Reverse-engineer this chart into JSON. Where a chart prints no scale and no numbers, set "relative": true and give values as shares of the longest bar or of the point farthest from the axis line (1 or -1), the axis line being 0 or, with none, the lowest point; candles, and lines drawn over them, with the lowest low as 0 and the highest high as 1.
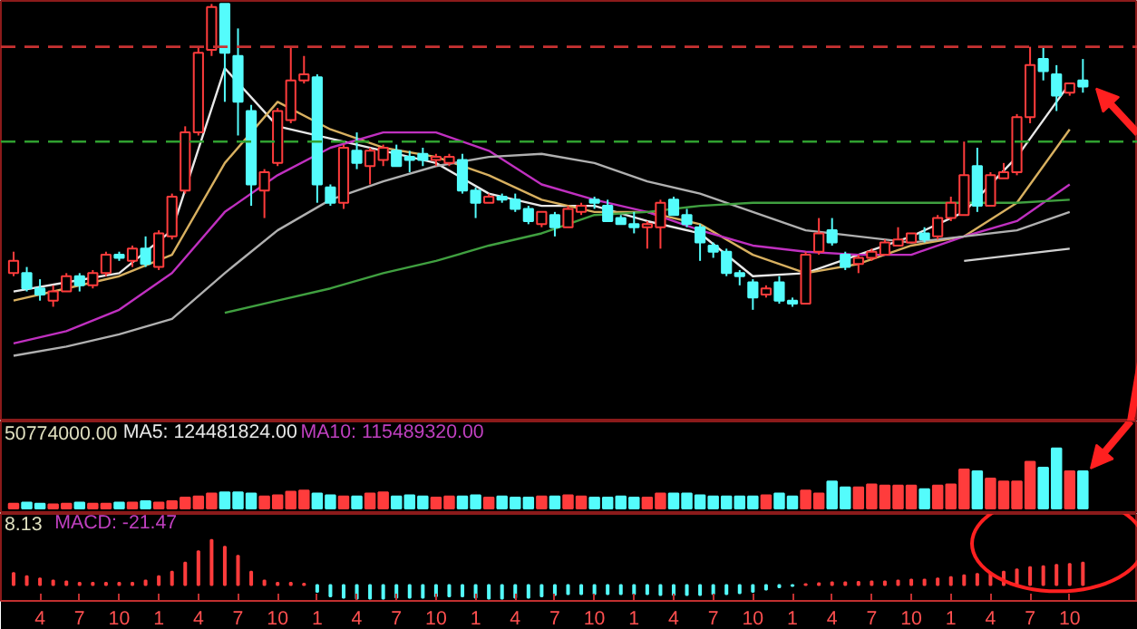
{
  "chart_data": [
    {
      "type": "candlestick",
      "relative": true,
      "tick_labels": false,
      "categories": [
        null,
        null,
        "4",
        null,
        null,
        "7",
        null,
        null,
        "10",
        null,
        null,
        "1",
        null,
        null,
        "4",
        null,
        null,
        "7",
        null,
        null,
        "10",
        null,
        null,
        "1",
        null,
        null,
        "4",
        null,
        null,
        "7",
        null,
        null,
        "10",
        null,
        null,
        "1",
        null,
        null,
        "4",
        null,
        null,
        "7",
        null,
        null,
        "10",
        null,
        null,
        "1",
        null,
        null,
        "4",
        null,
        null,
        "7",
        null,
        null,
        "10",
        null,
        null,
        "1",
        null,
        null,
        "4",
        null,
        null,
        "7",
        null,
        null,
        "10",
        null,
        null,
        "1",
        null,
        null,
        "4",
        null,
        null,
        "7",
        null,
        null,
        "10",
        null
      ],
      "ohlc": [
        [
          0.12,
          0.19,
          0.11,
          0.16
        ],
        [
          0.12,
          0.14,
          0.06,
          0.07
        ],
        [
          0.07,
          0.1,
          0.03,
          0.05
        ],
        [
          0.03,
          0.08,
          0.01,
          0.06
        ],
        [
          0.06,
          0.12,
          0.06,
          0.11
        ],
        [
          0.11,
          0.12,
          0.06,
          0.08
        ],
        [
          0.08,
          0.13,
          0.07,
          0.12
        ],
        [
          0.12,
          0.19,
          0.11,
          0.18
        ],
        [
          0.18,
          0.19,
          0.16,
          0.17
        ],
        [
          0.16,
          0.21,
          0.14,
          0.2
        ],
        [
          0.2,
          0.24,
          0.14,
          0.15
        ],
        [
          0.14,
          0.26,
          0.13,
          0.25
        ],
        [
          0.24,
          0.38,
          0.23,
          0.37
        ],
        [
          0.39,
          0.6,
          0.38,
          0.58
        ],
        [
          0.58,
          0.86,
          0.57,
          0.84
        ],
        [
          0.85,
          1.0,
          0.83,
          0.99
        ],
        [
          1.0,
          1.0,
          0.68,
          0.84
        ],
        [
          0.83,
          0.92,
          0.57,
          0.68
        ],
        [
          0.65,
          0.67,
          0.34,
          0.41
        ],
        [
          0.39,
          0.46,
          0.3,
          0.45
        ],
        [
          0.48,
          0.66,
          0.47,
          0.65
        ],
        [
          0.62,
          0.86,
          0.61,
          0.75
        ],
        [
          0.75,
          0.83,
          0.74,
          0.77
        ],
        [
          0.76,
          0.77,
          0.35,
          0.41
        ],
        [
          0.4,
          0.41,
          0.34,
          0.35
        ],
        [
          0.35,
          0.54,
          0.33,
          0.53
        ],
        [
          0.52,
          0.58,
          0.46,
          0.48
        ],
        [
          0.47,
          0.53,
          0.41,
          0.52
        ],
        [
          0.49,
          0.54,
          0.47,
          0.53
        ],
        [
          0.52,
          0.54,
          0.47,
          0.47
        ],
        [
          0.5,
          0.52,
          0.45,
          0.49
        ],
        [
          0.51,
          0.53,
          0.47,
          0.49
        ],
        [
          0.49,
          0.51,
          0.47,
          0.5
        ],
        [
          0.48,
          0.51,
          0.47,
          0.5
        ],
        [
          0.49,
          0.51,
          0.38,
          0.39
        ],
        [
          0.39,
          0.4,
          0.3,
          0.35
        ],
        [
          0.35,
          0.38,
          0.35,
          0.37
        ],
        [
          0.37,
          0.38,
          0.35,
          0.36
        ],
        [
          0.36,
          0.38,
          0.32,
          0.33
        ],
        [
          0.33,
          0.34,
          0.28,
          0.29
        ],
        [
          0.28,
          0.32,
          0.27,
          0.32
        ],
        [
          0.31,
          0.32,
          0.24,
          0.27
        ],
        [
          0.27,
          0.34,
          0.27,
          0.33
        ],
        [
          0.32,
          0.35,
          0.31,
          0.34
        ],
        [
          0.36,
          0.37,
          0.33,
          0.35
        ],
        [
          0.34,
          0.36,
          0.29,
          0.29
        ],
        [
          0.3,
          0.31,
          0.28,
          0.28
        ],
        [
          0.28,
          0.32,
          0.25,
          0.27
        ],
        [
          0.27,
          0.29,
          0.2,
          0.28
        ],
        [
          0.27,
          0.36,
          0.2,
          0.35
        ],
        [
          0.36,
          0.37,
          0.31,
          0.31
        ],
        [
          0.31,
          0.33,
          0.27,
          0.28
        ],
        [
          0.27,
          0.28,
          0.16,
          0.22
        ],
        [
          0.21,
          0.22,
          0.17,
          0.19
        ],
        [
          0.19,
          0.2,
          0.11,
          0.12
        ],
        [
          0.12,
          0.13,
          0.08,
          0.11
        ],
        [
          0.09,
          0.1,
          0.0,
          0.04
        ],
        [
          0.05,
          0.08,
          0.04,
          0.07
        ],
        [
          0.09,
          0.11,
          0.02,
          0.03
        ],
        [
          0.03,
          0.04,
          0.01,
          0.02
        ],
        [
          0.02,
          0.19,
          0.02,
          0.18
        ],
        [
          0.19,
          0.3,
          0.18,
          0.25
        ],
        [
          0.26,
          0.3,
          0.21,
          0.22
        ],
        [
          0.18,
          0.19,
          0.13,
          0.14
        ],
        [
          0.15,
          0.18,
          0.12,
          0.17
        ],
        [
          0.17,
          0.2,
          0.16,
          0.19
        ],
        [
          0.18,
          0.23,
          0.18,
          0.22
        ],
        [
          0.21,
          0.27,
          0.21,
          0.23
        ],
        [
          0.22,
          0.25,
          0.22,
          0.25
        ],
        [
          0.25,
          0.27,
          0.22,
          0.23
        ],
        [
          0.24,
          0.31,
          0.23,
          0.3
        ],
        [
          0.3,
          0.37,
          0.29,
          0.35
        ],
        [
          0.31,
          0.55,
          0.31,
          0.44
        ],
        [
          0.47,
          0.53,
          0.32,
          0.34
        ],
        [
          0.34,
          0.45,
          0.34,
          0.44
        ],
        [
          0.43,
          0.48,
          0.43,
          0.45
        ],
        [
          0.45,
          0.64,
          0.44,
          0.63
        ],
        [
          0.63,
          0.86,
          0.61,
          0.8
        ],
        [
          0.82,
          0.86,
          0.75,
          0.78
        ],
        [
          0.77,
          0.8,
          0.65,
          0.7
        ],
        [
          0.71,
          0.74,
          0.7,
          0.74
        ],
        [
          0.75,
          0.82,
          0.71,
          0.73
        ]
      ],
      "series": [
        {
          "type": "line",
          "color": "#e8e8e8",
          "values": [
            0.06,
            null,
            null,
            null,
            0.09,
            null,
            null,
            null,
            0.12,
            null,
            null,
            null,
            0.26,
            null,
            null,
            null,
            0.79,
            null,
            null,
            null,
            0.6,
            null,
            null,
            null,
            0.56,
            null,
            null,
            null,
            0.52,
            null,
            null,
            null,
            0.48,
            null,
            null,
            null,
            0.38,
            null,
            null,
            null,
            0.34,
            null,
            null,
            null,
            0.34,
            null,
            null,
            null,
            0.29,
            null,
            null,
            null,
            0.25,
            null,
            null,
            null,
            0.11,
            null,
            null,
            null,
            0.12,
            null,
            null,
            null,
            0.18,
            null,
            null,
            null,
            0.24,
            null,
            null,
            null,
            0.32,
            null,
            null,
            null,
            0.5,
            null,
            null,
            null,
            0.74,
            null
          ]
        },
        {
          "type": "line",
          "color": "#d8b060",
          "values": [
            0.03,
            null,
            null,
            null,
            0.07,
            null,
            null,
            null,
            0.11,
            null,
            null,
            null,
            0.18,
            null,
            null,
            null,
            0.48,
            null,
            null,
            null,
            0.68,
            null,
            null,
            null,
            0.59,
            null,
            null,
            null,
            0.53,
            null,
            null,
            null,
            0.5,
            null,
            null,
            null,
            0.44,
            null,
            null,
            null,
            0.36,
            null,
            null,
            null,
            0.32,
            null,
            null,
            null,
            0.32,
            null,
            null,
            null,
            0.28,
            null,
            null,
            null,
            0.18,
            null,
            null,
            null,
            0.12,
            null,
            null,
            null,
            0.15,
            null,
            null,
            null,
            0.21,
            null,
            null,
            null,
            0.24,
            null,
            null,
            null,
            0.35,
            null,
            null,
            null,
            0.59,
            null
          ]
        },
        {
          "type": "line",
          "color": "#c030c0",
          "values": [
            -0.11,
            null,
            null,
            null,
            -0.07,
            null,
            null,
            null,
            0.0,
            null,
            null,
            null,
            0.12,
            null,
            null,
            null,
            0.32,
            null,
            null,
            null,
            0.44,
            null,
            null,
            null,
            0.53,
            null,
            null,
            null,
            0.58,
            null,
            null,
            null,
            0.58,
            null,
            null,
            null,
            0.52,
            null,
            null,
            null,
            0.41,
            null,
            null,
            null,
            0.36,
            null,
            null,
            null,
            0.32,
            null,
            null,
            null,
            0.26,
            null,
            null,
            null,
            0.21,
            null,
            null,
            null,
            0.19,
            null,
            null,
            null,
            0.18,
            null,
            null,
            null,
            0.18,
            null,
            null,
            null,
            0.24,
            null,
            null,
            null,
            0.29,
            null,
            null,
            null,
            0.41,
            null
          ]
        },
        {
          "type": "line",
          "color": "#b0b0b0",
          "values": [
            -0.15,
            null,
            null,
            null,
            -0.12,
            null,
            null,
            null,
            -0.08,
            null,
            null,
            null,
            -0.03,
            null,
            null,
            null,
            0.12,
            null,
            null,
            null,
            0.26,
            null,
            null,
            null,
            0.36,
            null,
            null,
            null,
            0.42,
            null,
            null,
            null,
            0.47,
            null,
            null,
            null,
            0.5,
            null,
            null,
            null,
            0.51,
            null,
            null,
            null,
            0.48,
            null,
            null,
            null,
            0.42,
            null,
            null,
            null,
            0.38,
            null,
            null,
            null,
            0.32,
            null,
            null,
            null,
            0.26,
            null,
            null,
            null,
            0.24,
            null,
            null,
            null,
            0.22,
            null,
            null,
            null,
            0.24,
            null,
            null,
            null,
            0.26,
            null,
            null,
            null,
            0.32,
            null
          ]
        },
        {
          "type": "line",
          "color": "#40a040",
          "values": [
            null,
            null,
            null,
            null,
            null,
            null,
            null,
            null,
            null,
            null,
            null,
            null,
            null,
            null,
            null,
            null,
            -0.01,
            null,
            null,
            null,
            0.03,
            null,
            null,
            null,
            0.07,
            null,
            null,
            null,
            0.12,
            null,
            null,
            null,
            0.16,
            null,
            null,
            null,
            0.21,
            null,
            null,
            null,
            0.25,
            null,
            null,
            null,
            0.31,
            null,
            null,
            null,
            0.32,
            null,
            null,
            null,
            0.34,
            null,
            null,
            null,
            0.35,
            null,
            null,
            null,
            0.35,
            null,
            null,
            null,
            0.35,
            null,
            null,
            null,
            0.35,
            null,
            null,
            null,
            0.35,
            null,
            null,
            null,
            0.35,
            null,
            null,
            null,
            0.36,
            null
          ]
        },
        {
          "type": "line",
          "color": "#d0d0d0",
          "values": [
            null,
            null,
            null,
            null,
            null,
            null,
            null,
            null,
            null,
            null,
            null,
            null,
            null,
            null,
            null,
            null,
            null,
            null,
            null,
            null,
            null,
            null,
            null,
            null,
            null,
            null,
            null,
            null,
            null,
            null,
            null,
            null,
            null,
            null,
            null,
            null,
            null,
            null,
            null,
            null,
            null,
            null,
            null,
            null,
            null,
            null,
            null,
            null,
            null,
            null,
            null,
            null,
            null,
            null,
            null,
            null,
            null,
            null,
            null,
            null,
            null,
            null,
            null,
            null,
            null,
            null,
            null,
            null,
            null,
            null,
            null,
            null,
            0.16,
            null,
            null,
            null,
            0.18,
            null,
            null,
            null,
            0.2,
            null
          ]
        }
      ],
      "ref_lines": [
        {
          "axis": "y",
          "value": 0.86,
          "color": "#c83232",
          "line_style": "dashed"
        },
        {
          "axis": "y",
          "value": 0.55,
          "color": "#30a030",
          "line_style": "dashed"
        }
      ]
    },
    {
      "type": "bar",
      "relative": true,
      "tick_labels": false,
      "annotations": [
        "50774000.00",
        "MA5: 124481824.00",
        "MA10: 115489320.00"
      ],
      "categories": [
        null,
        null,
        "4",
        null,
        null,
        "7",
        null,
        null,
        "10",
        null,
        null,
        "1",
        null,
        null,
        "4",
        null,
        null,
        "7",
        null,
        null,
        "10",
        null,
        null,
        "1",
        null,
        null,
        "4",
        null,
        null,
        "7",
        null,
        null,
        "10",
        null,
        null,
        "1",
        null,
        null,
        "4",
        null,
        null,
        "7",
        null,
        null,
        "10",
        null,
        null,
        "1",
        null,
        null,
        "4",
        null,
        null,
        "7",
        null,
        null,
        "10",
        null,
        null,
        "1",
        null,
        null,
        "4",
        null,
        null,
        "7",
        null,
        null,
        "10",
        null,
        null,
        "1",
        null,
        null,
        "4",
        null,
        null,
        "7",
        null,
        null,
        "10",
        null
      ],
      "values": [
        0.08,
        0.1,
        0.08,
        0.07,
        0.08,
        0.1,
        0.08,
        0.08,
        0.1,
        0.1,
        0.12,
        0.1,
        0.12,
        0.18,
        0.2,
        0.25,
        0.27,
        0.27,
        0.25,
        0.2,
        0.22,
        0.28,
        0.3,
        0.25,
        0.22,
        0.2,
        0.2,
        0.25,
        0.27,
        0.2,
        0.22,
        0.2,
        0.18,
        0.2,
        0.2,
        0.22,
        0.18,
        0.2,
        0.18,
        0.18,
        0.2,
        0.2,
        0.22,
        0.2,
        0.18,
        0.18,
        0.2,
        0.18,
        0.18,
        0.25,
        0.25,
        0.25,
        0.22,
        0.2,
        0.2,
        0.2,
        0.2,
        0.22,
        0.25,
        0.2,
        0.3,
        0.25,
        0.45,
        0.35,
        0.35,
        0.4,
        0.38,
        0.38,
        0.38,
        0.32,
        0.38,
        0.4,
        0.65,
        0.62,
        0.5,
        0.45,
        0.45,
        0.78,
        0.68,
        1.0,
        0.62,
        0.62
      ],
      "colors": [
        "#ff3c3c",
        "#54fcfc",
        "#54fcfc",
        "#ff3c3c",
        "#ff3c3c",
        "#54fcfc",
        "#ff3c3c",
        "#ff3c3c",
        "#54fcfc",
        "#ff3c3c",
        "#54fcfc",
        "#ff3c3c",
        "#ff3c3c",
        "#ff3c3c",
        "#ff3c3c",
        "#ff3c3c",
        "#54fcfc",
        "#54fcfc",
        "#54fcfc",
        "#ff3c3c",
        "#ff3c3c",
        "#ff3c3c",
        "#ff3c3c",
        "#54fcfc",
        "#54fcfc",
        "#ff3c3c",
        "#54fcfc",
        "#ff3c3c",
        "#ff3c3c",
        "#54fcfc",
        "#54fcfc",
        "#54fcfc",
        "#ff3c3c",
        "#ff3c3c",
        "#54fcfc",
        "#54fcfc",
        "#ff3c3c",
        "#54fcfc",
        "#54fcfc",
        "#54fcfc",
        "#ff3c3c",
        "#54fcfc",
        "#ff3c3c",
        "#ff3c3c",
        "#54fcfc",
        "#54fcfc",
        "#54fcfc",
        "#54fcfc",
        "#ff3c3c",
        "#ff3c3c",
        "#54fcfc",
        "#54fcfc",
        "#54fcfc",
        "#54fcfc",
        "#54fcfc",
        "#54fcfc",
        "#54fcfc",
        "#ff3c3c",
        "#54fcfc",
        "#54fcfc",
        "#ff3c3c",
        "#ff3c3c",
        "#54fcfc",
        "#54fcfc",
        "#ff3c3c",
        "#ff3c3c",
        "#ff3c3c",
        "#ff3c3c",
        "#ff3c3c",
        "#54fcfc",
        "#ff3c3c",
        "#ff3c3c",
        "#ff3c3c",
        "#54fcfc",
        "#ff3c3c",
        "#ff3c3c",
        "#ff3c3c",
        "#ff3c3c",
        "#54fcfc",
        "#54fcfc",
        "#ff3c3c",
        "#54fcfc"
      ]
    },
    {
      "type": "bar",
      "relative": true,
      "annotations": [
        "8.13",
        "MACD: -21.47"
      ],
      "categories": [
        null,
        null,
        "4",
        null,
        null,
        "7",
        null,
        null,
        "10",
        null,
        null,
        "1",
        null,
        null,
        "4",
        null,
        null,
        "7",
        null,
        null,
        "10",
        null,
        null,
        "1",
        null,
        null,
        "4",
        null,
        null,
        "7",
        null,
        null,
        "10",
        null,
        null,
        "1",
        null,
        null,
        "4",
        null,
        null,
        "7",
        null,
        null,
        "10",
        null,
        null,
        "1",
        null,
        null,
        "4",
        null,
        null,
        "7",
        null,
        null,
        "10",
        null,
        null,
        "1",
        null,
        null,
        "4",
        null,
        null,
        "7",
        null,
        null,
        "10",
        null,
        null,
        "1",
        null,
        null,
        "4",
        null,
        null,
        "7",
        null,
        null,
        "10",
        null
      ],
      "values": [
        0.27,
        0.2,
        0.15,
        0.1,
        0.08,
        0.05,
        0.05,
        0.05,
        0.05,
        0.05,
        0.1,
        0.2,
        0.3,
        0.5,
        0.75,
        1.0,
        0.85,
        0.65,
        0.3,
        0.1,
        0.05,
        0.05,
        0.03,
        -0.15,
        -0.25,
        -0.28,
        -0.3,
        -0.3,
        -0.3,
        -0.28,
        -0.28,
        -0.28,
        -0.25,
        -0.25,
        -0.25,
        -0.28,
        -0.3,
        -0.3,
        -0.28,
        -0.28,
        -0.25,
        -0.22,
        -0.2,
        -0.2,
        -0.2,
        -0.2,
        -0.2,
        -0.2,
        -0.2,
        -0.22,
        -0.22,
        -0.22,
        -0.22,
        -0.2,
        -0.2,
        -0.18,
        -0.15,
        -0.1,
        -0.05,
        -0.02,
        0.02,
        0.04,
        0.06,
        0.06,
        0.07,
        0.08,
        0.08,
        0.1,
        0.12,
        0.12,
        0.15,
        0.18,
        0.22,
        0.25,
        0.28,
        0.3,
        0.35,
        0.4,
        0.42,
        0.45,
        0.47,
        0.5
      ],
      "colors": [
        "#ff3c3c",
        "#ff3c3c",
        "#ff3c3c",
        "#ff3c3c",
        "#ff3c3c",
        "#ff3c3c",
        "#ff3c3c",
        "#ff3c3c",
        "#ff3c3c",
        "#ff3c3c",
        "#ff3c3c",
        "#ff3c3c",
        "#ff3c3c",
        "#ff3c3c",
        "#ff3c3c",
        "#ff3c3c",
        "#ff3c3c",
        "#ff3c3c",
        "#ff3c3c",
        "#ff3c3c",
        "#ff3c3c",
        "#ff3c3c",
        "#ff3c3c",
        "#54fcfc",
        "#54fcfc",
        "#54fcfc",
        "#54fcfc",
        "#54fcfc",
        "#54fcfc",
        "#54fcfc",
        "#54fcfc",
        "#54fcfc",
        "#54fcfc",
        "#54fcfc",
        "#54fcfc",
        "#54fcfc",
        "#54fcfc",
        "#54fcfc",
        "#54fcfc",
        "#54fcfc",
        "#54fcfc",
        "#54fcfc",
        "#54fcfc",
        "#54fcfc",
        "#54fcfc",
        "#54fcfc",
        "#54fcfc",
        "#54fcfc",
        "#54fcfc",
        "#54fcfc",
        "#54fcfc",
        "#54fcfc",
        "#54fcfc",
        "#54fcfc",
        "#54fcfc",
        "#54fcfc",
        "#54fcfc",
        "#54fcfc",
        "#54fcfc",
        "#54fcfc",
        "#ff3c3c",
        "#ff3c3c",
        "#ff3c3c",
        "#ff3c3c",
        "#ff3c3c",
        "#ff3c3c",
        "#ff3c3c",
        "#ff3c3c",
        "#ff3c3c",
        "#ff3c3c",
        "#ff3c3c",
        "#ff3c3c",
        "#ff3c3c",
        "#ff3c3c",
        "#ff3c3c",
        "#ff3c3c",
        "#ff3c3c",
        "#ff3c3c",
        "#ff3c3c",
        "#ff3c3c",
        "#ff3c3c",
        "#ff3c3c"
      ]
    }
  ]
}
